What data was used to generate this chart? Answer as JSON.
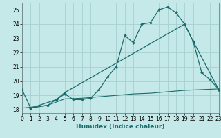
{
  "bg_color": "#c5e8e8",
  "grid_color": "#a8d0d0",
  "line_color": "#1a6b6b",
  "line1_x": [
    0,
    1,
    3,
    4,
    5,
    6,
    7,
    8,
    9,
    10,
    11,
    12,
    13,
    14,
    15,
    16,
    17,
    18,
    19,
    20,
    21,
    22,
    23
  ],
  "line1_y": [
    19.4,
    18.1,
    18.3,
    18.7,
    19.1,
    18.7,
    18.7,
    18.8,
    19.4,
    20.3,
    21.0,
    23.2,
    22.7,
    24.0,
    24.1,
    25.0,
    25.2,
    24.8,
    24.0,
    22.8,
    20.6,
    20.1,
    19.4
  ],
  "line2_x": [
    1,
    4,
    5,
    19,
    20,
    23
  ],
  "line2_y": [
    18.1,
    18.7,
    19.2,
    24.0,
    22.8,
    19.4
  ],
  "line3_x": [
    0,
    3,
    5,
    7,
    9,
    11,
    13,
    15,
    17,
    19,
    21,
    23
  ],
  "line3_y": [
    18.1,
    18.3,
    18.75,
    18.8,
    18.9,
    19.0,
    19.1,
    19.15,
    19.25,
    19.35,
    19.4,
    19.45
  ],
  "xlim": [
    0,
    23
  ],
  "ylim": [
    17.75,
    25.5
  ],
  "yticks": [
    18,
    19,
    20,
    21,
    22,
    23,
    24,
    25
  ],
  "xticks": [
    0,
    1,
    2,
    3,
    4,
    5,
    6,
    7,
    8,
    9,
    10,
    11,
    12,
    13,
    14,
    15,
    16,
    17,
    18,
    19,
    20,
    21,
    22,
    23
  ],
  "xlabel": "Humidex (Indice chaleur)",
  "xlabel_fontsize": 6.5,
  "tick_fontsize": 5.5
}
